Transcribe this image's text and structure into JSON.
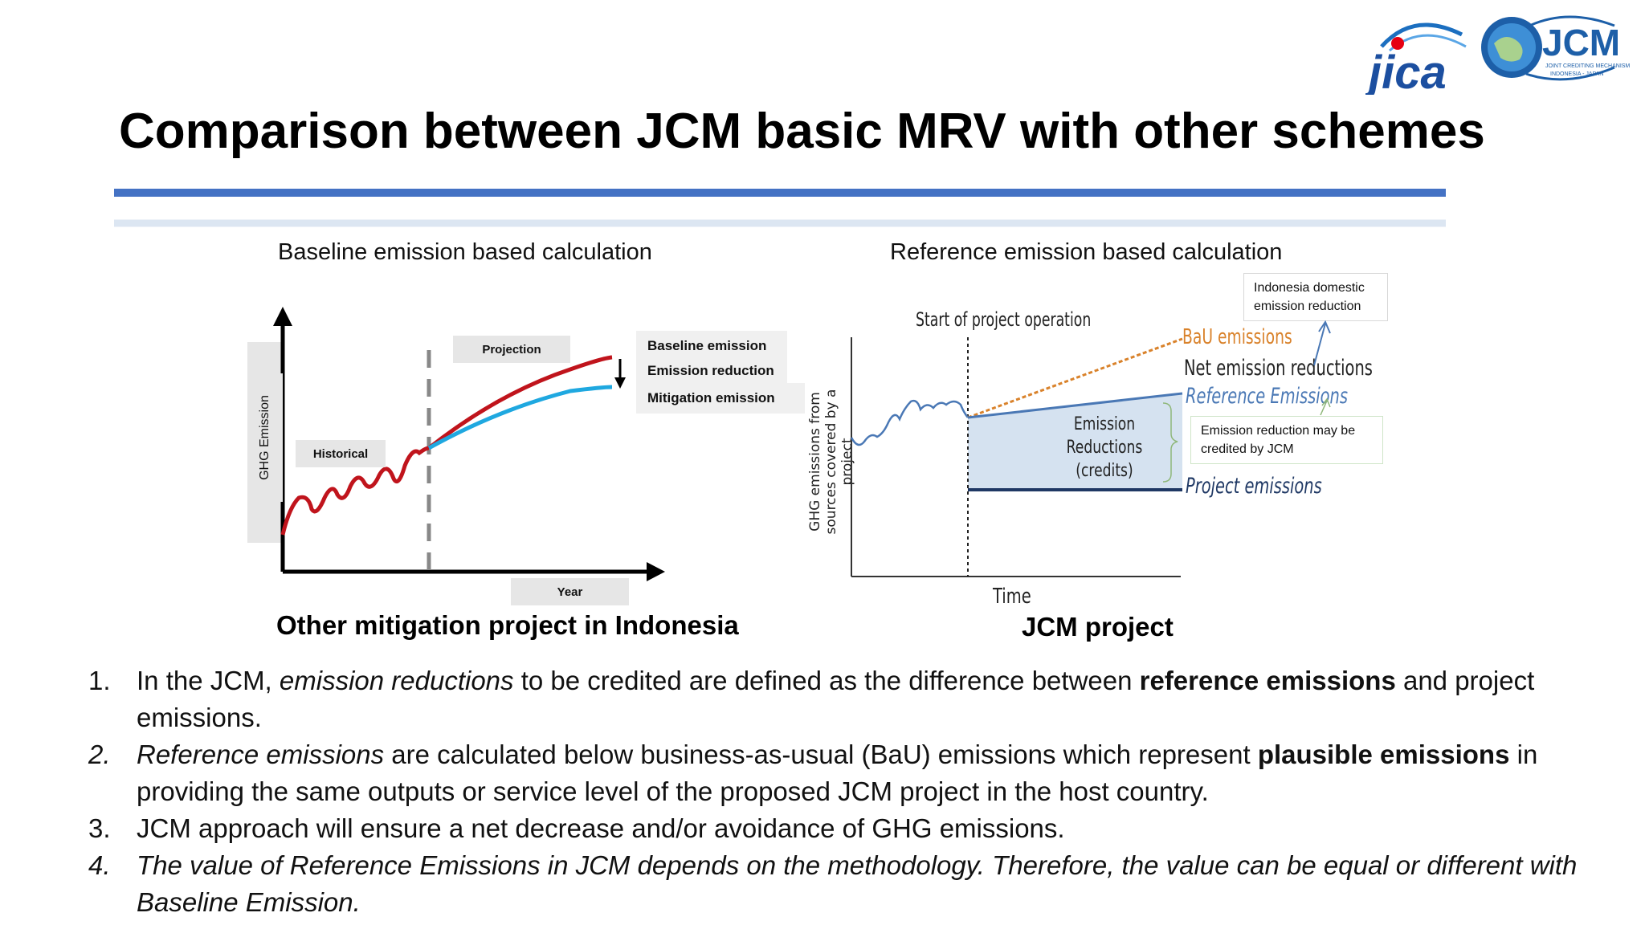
{
  "slide": {
    "title": "Comparison between JCM basic MRV with other schemes"
  },
  "logos": {
    "jica": "jica",
    "jcm": "JCM",
    "jcm_sub1": "JOINT CREDITING MECHANISM",
    "jcm_sub2": "INDONESIA - JAPAN"
  },
  "left_diagram": {
    "caption": "Baseline emission based calculation",
    "y_label": "GHG Emission",
    "historical_label": "Historical",
    "projection_label": "Projection",
    "x_label": "Year",
    "legend": [
      "Baseline emission",
      "Emission reduction",
      "Mitigation emission"
    ],
    "bottom_caption": "Other mitigation project in Indonesia",
    "colors": {
      "baseline": "#c0141c",
      "mitigation": "#1fa8e0",
      "divider": "#888888"
    }
  },
  "right_diagram": {
    "caption": "Reference emission based calculation",
    "y_label_line1": "GHG emissions from",
    "y_label_line2": "sources covered by a",
    "y_label_line3": "project",
    "start_label": "Start of project operation",
    "bau_label": "BaU emissions",
    "net_label": "Net emission reductions",
    "reference_label": "Reference Emissions",
    "project_label": "Project emissions",
    "reductions_line1": "Emission",
    "reductions_line2": "Reductions",
    "reductions_line3": "(credits)",
    "x_label": "Time",
    "note_domestic": "Indonesia domestic emission reduction",
    "note_credited": "Emission reduction may be credited by JCM",
    "bottom_caption": "JCM project",
    "colors": {
      "bau": "#d9822b",
      "reference": "#4a78b5",
      "project": "#1f3864",
      "fill": "#d5e2f0"
    }
  },
  "points": [
    {
      "num": "1.",
      "parts": [
        {
          "t": "In the JCM, ",
          "s": ""
        },
        {
          "t": "emission reductions",
          "s": "ital"
        },
        {
          "t": " to be credited are defined as the difference between ",
          "s": ""
        },
        {
          "t": "reference emissions",
          "s": "bold"
        },
        {
          "t": " and project emissions.",
          "s": ""
        }
      ]
    },
    {
      "num": "2.",
      "num_style": "ital",
      "parts": [
        {
          "t": "Reference emissions",
          "s": "ital"
        },
        {
          "t": " are calculated below business-as-usual (BaU) emissions which represent ",
          "s": ""
        },
        {
          "t": "plausible emissions",
          "s": "bold"
        },
        {
          "t": " in providing the same outputs or service level of the proposed JCM project in the host country.",
          "s": ""
        }
      ]
    },
    {
      "num": "3.",
      "parts": [
        {
          "t": "JCM approach will ensure a net decrease and/or avoidance of GHG emissions.",
          "s": ""
        }
      ]
    },
    {
      "num": "4.",
      "num_style": "ital",
      "parts": [
        {
          "t": "The value of Reference Emissions  in JCM  depends on the methodology. Therefore, the value can be equal or different with Baseline Emission.",
          "s": "ital"
        }
      ]
    }
  ]
}
